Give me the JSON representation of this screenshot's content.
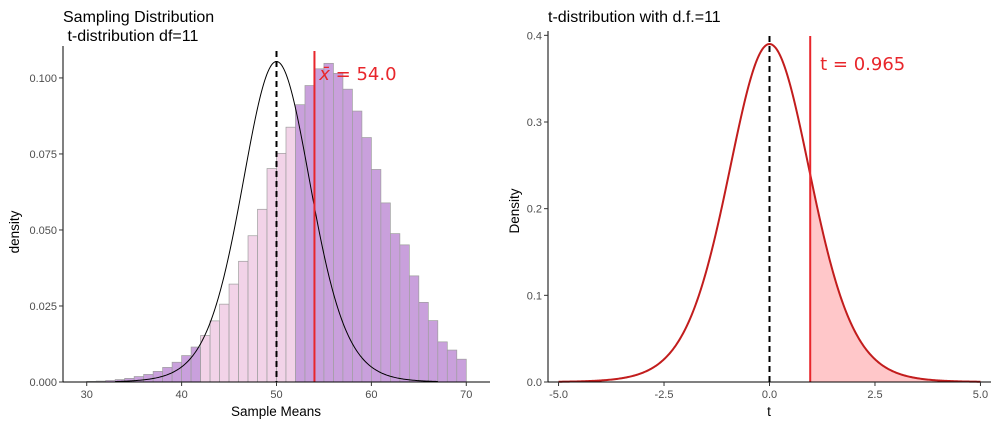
{
  "chart_data": [
    {
      "type": "histogram",
      "title": "Sampling Distribution",
      "subtitle": " t-distribution df=11",
      "xlabel": "Sample Means",
      "ylabel": "density",
      "xlim": [
        27.5,
        72.5
      ],
      "ylim": [
        0,
        0.1105
      ],
      "x_ticks": [
        30,
        40,
        50,
        60,
        70
      ],
      "x_tick_labels": [
        "30",
        "40",
        "50",
        "60",
        "70"
      ],
      "y_ticks": [
        0,
        0.025,
        0.05,
        0.075,
        0.1
      ],
      "y_tick_labels": [
        "0.000",
        "0.025",
        "0.050",
        "0.075",
        "0.100"
      ],
      "grid": false,
      "bins": {
        "start": 30,
        "width": 1,
        "count": 40
      },
      "bar_values": [
        0.0002,
        0.0003,
        0.0005,
        0.0008,
        0.0012,
        0.0018,
        0.0025,
        0.0035,
        0.0048,
        0.0065,
        0.0087,
        0.0115,
        0.0153,
        0.0201,
        0.0256,
        0.0322,
        0.0397,
        0.0481,
        0.0568,
        0.0702,
        0.0752,
        0.0838,
        0.0912,
        0.0975,
        0.103,
        0.1048,
        0.1015,
        0.0963,
        0.0891,
        0.0804,
        0.0699,
        0.0589,
        0.0488,
        0.0451,
        0.0349,
        0.0262,
        0.0202,
        0.0132,
        0.0105,
        0.0075
      ],
      "density_curve": {
        "type": "t",
        "df": 11,
        "center": 50,
        "scale": 3.7,
        "x_range": [
          33,
          67
        ]
      },
      "vline_dashed": 50,
      "vline_solid": 54.0,
      "annotation": {
        "symbol": "x̄",
        "text": " = 54.0",
        "x": 54.3,
        "y": 0.1
      },
      "colors": {
        "bar_fill": "#f2d3e8",
        "bar_stroke": "#9e9e9e",
        "bar_fill_over": "#c9a0dc",
        "curve": "#000000",
        "vline_solid": "#e8262b",
        "vline_dashed": "#000000",
        "annotation": "#e8262b"
      }
    },
    {
      "type": "line",
      "title": "t-distribution with d.f.=11",
      "xlabel": "t",
      "ylabel": "Density",
      "xlim": [
        -5.25,
        5.25
      ],
      "ylim": [
        0,
        0.405
      ],
      "x_ticks": [
        -5,
        -2.5,
        0,
        2.5,
        5
      ],
      "x_tick_labels": [
        "-5.0",
        "-2.5",
        "0.0",
        "2.5",
        "5.0"
      ],
      "y_ticks": [
        0,
        0.1,
        0.2,
        0.3,
        0.4
      ],
      "y_tick_labels": [
        "0.0",
        "0.1",
        "0.2",
        "0.3",
        "0.4"
      ],
      "grid": false,
      "curve": {
        "type": "t",
        "df": 11,
        "x_range": [
          -5,
          5
        ]
      },
      "shaded_from": 0.965,
      "vline_dashed": 0,
      "vline_solid": 0.965,
      "annotation": {
        "text": "t = 0.965",
        "x": 1.2,
        "y": 0.36
      },
      "colors": {
        "curve": "#c21d1d",
        "shade": "#ffc7c9",
        "vline_solid": "#e8262b",
        "vline_dashed": "#000000",
        "annotation": "#e8262b"
      }
    }
  ]
}
